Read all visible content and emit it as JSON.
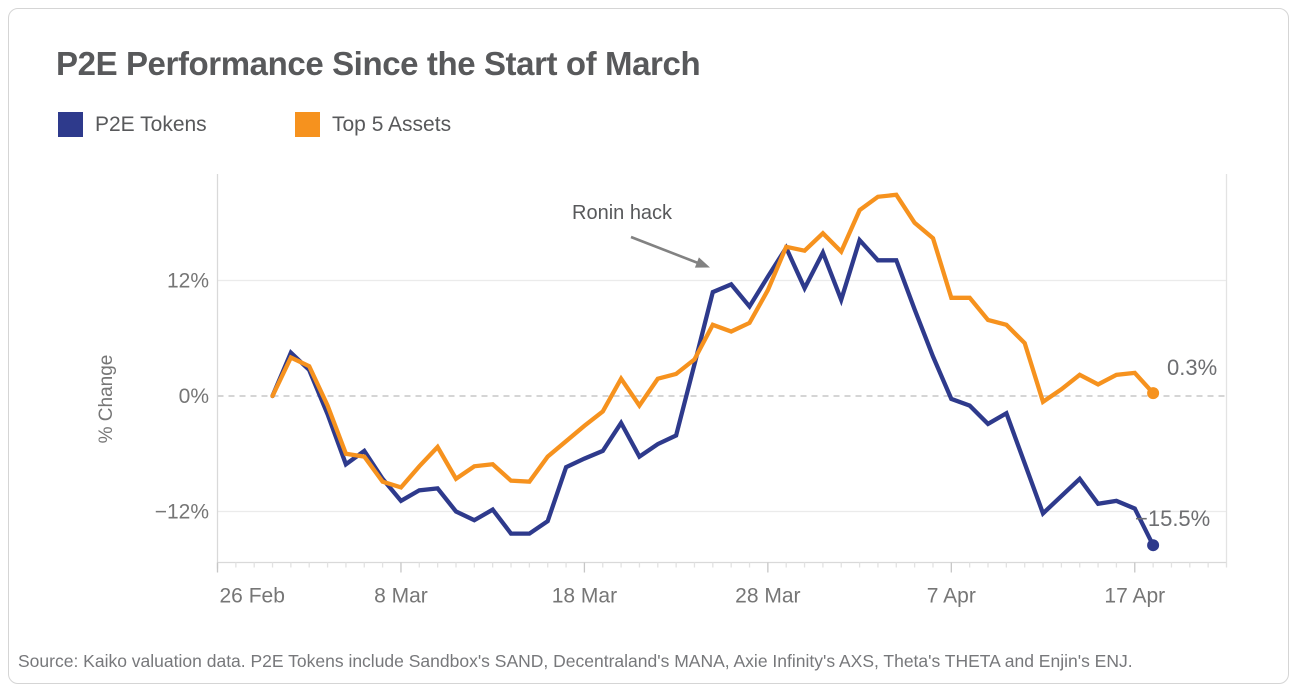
{
  "header": {
    "title": "P2E Performance Since the Start of March"
  },
  "legend": [
    {
      "label": "P2E Tokens",
      "color": "#2e3a8c"
    },
    {
      "label": "Top 5 Assets",
      "color": "#f6921e"
    }
  ],
  "footer": {
    "source": "Source: Kaiko valuation data. P2E Tokens include Sandbox's SAND, Decentraland's MANA, Axie Infinity's AXS, Theta's THETA and Enjin's ENJ."
  },
  "chart_data": {
    "type": "line",
    "title": "P2E Performance Since the Start of March",
    "xlabel": "",
    "ylabel": "% Change",
    "grid": "horizontal",
    "legend_position": "top-left",
    "annotation": {
      "text": "Ronin hack"
    },
    "y_axis": {
      "unit": "%",
      "range": [
        -17.2,
        23.0
      ],
      "ticks": [
        {
          "label": "12%",
          "value": 12
        },
        {
          "label": "0%",
          "value": 0
        },
        {
          "label": "−12%",
          "value": -12
        }
      ],
      "zero_line": "dashed"
    },
    "x_axis": {
      "start_label": "26 Feb",
      "data_start_offset_days": 3,
      "total_days_span": 55,
      "ticks": [
        {
          "label": "26 Feb",
          "day": 0
        },
        {
          "label": "8 Mar",
          "day": 10
        },
        {
          "label": "18 Mar",
          "day": 20
        },
        {
          "label": "28 Mar",
          "day": 30
        },
        {
          "label": "7 Apr",
          "day": 40
        },
        {
          "label": "17 Apr",
          "day": 50
        }
      ]
    },
    "x": [
      "1 Mar",
      "2 Mar",
      "3 Mar",
      "4 Mar",
      "5 Mar",
      "6 Mar",
      "7 Mar",
      "8 Mar",
      "9 Mar",
      "10 Mar",
      "11 Mar",
      "12 Mar",
      "13 Mar",
      "14 Mar",
      "15 Mar",
      "16 Mar",
      "17 Mar",
      "18 Mar",
      "19 Mar",
      "20 Mar",
      "21 Mar",
      "22 Mar",
      "23 Mar",
      "24 Mar",
      "25 Mar",
      "26 Mar",
      "27 Mar",
      "28 Mar",
      "29 Mar",
      "30 Mar",
      "31 Mar",
      "1 Apr",
      "2 Apr",
      "3 Apr",
      "4 Apr",
      "5 Apr",
      "6 Apr",
      "7 Apr",
      "8 Apr",
      "9 Apr",
      "10 Apr",
      "11 Apr",
      "12 Apr",
      "13 Apr",
      "14 Apr",
      "15 Apr",
      "16 Apr",
      "17 Apr",
      "18 Apr"
    ],
    "series": [
      {
        "name": "P2E Tokens",
        "color": "#2e3a8c",
        "end_label": "−15.5%",
        "end_value": -15.5,
        "values": [
          0,
          4.5,
          2.7,
          -1.9,
          -7.1,
          -5.7,
          -8.6,
          -10.9,
          -9.8,
          -9.6,
          -12.0,
          -12.9,
          -11.8,
          -14.3,
          -14.3,
          -13.0,
          -7.4,
          -6.5,
          -5.7,
          -2.8,
          -6.3,
          -5.0,
          -4.1,
          3.3,
          10.8,
          11.6,
          9.3,
          12.4,
          15.4,
          11.2,
          14.9,
          10.0,
          16.2,
          14.1,
          14.1,
          9.0,
          4.1,
          -0.3,
          -1.0,
          -2.9,
          -1.8,
          -7.0,
          -12.2,
          -10.4,
          -8.6,
          -11.2,
          -10.9,
          -11.7,
          -15.5
        ]
      },
      {
        "name": "Top 5 Assets",
        "color": "#f6921e",
        "end_label": "0.3%",
        "end_value": 0.3,
        "values": [
          0,
          4.0,
          3.1,
          -1.0,
          -6.0,
          -6.3,
          -8.9,
          -9.5,
          -7.3,
          -5.3,
          -8.6,
          -7.3,
          -7.1,
          -8.8,
          -8.9,
          -6.3,
          -4.7,
          -3.1,
          -1.6,
          1.8,
          -1.0,
          1.8,
          2.3,
          3.8,
          7.4,
          6.7,
          7.6,
          11.0,
          15.5,
          15.1,
          16.9,
          15.0,
          19.3,
          20.7,
          20.9,
          18.0,
          16.4,
          10.2,
          10.2,
          7.9,
          7.4,
          5.5,
          -0.6,
          0.7,
          2.2,
          1.2,
          2.2,
          2.4,
          0.3
        ]
      }
    ]
  }
}
